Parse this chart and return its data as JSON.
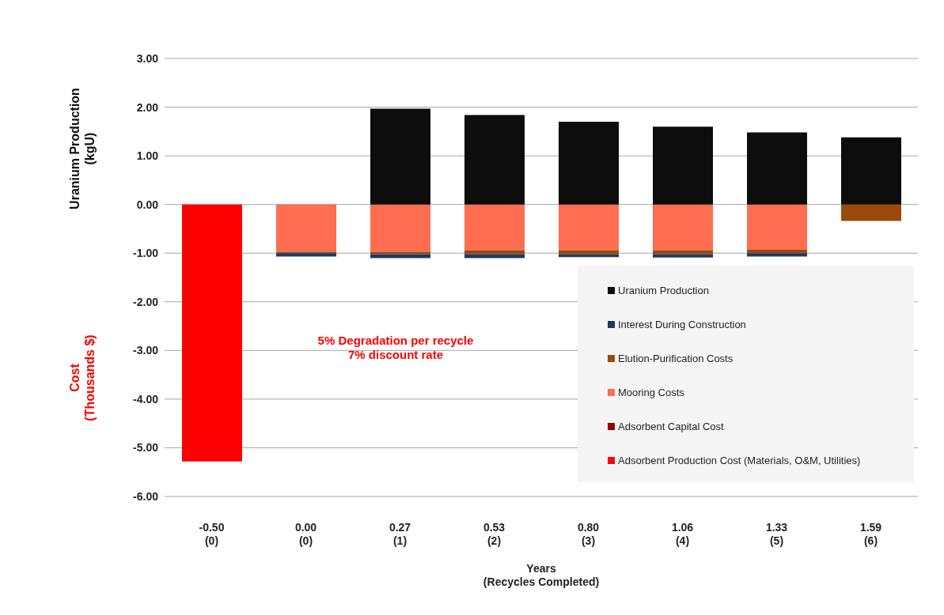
{
  "chart_data": {
    "type": "bar",
    "stacked": true,
    "categories": [
      "-0.50\n(0)",
      "0.00\n(0)",
      "0.27\n(1)",
      "0.53\n(2)",
      "0.80\n(3)",
      "1.06\n(4)",
      "1.33\n(5)",
      "1.59\n(6)"
    ],
    "xlabel": "Years\n(Recycles Completed)",
    "ylabel": "Uranium Production\n(kgU)",
    "series": [
      {
        "name": "Adsorbent Production Cost (Materials, O&M, Utilities)",
        "color": "#ff0000",
        "values": [
          -5.28,
          null,
          null,
          null,
          null,
          null,
          null,
          null
        ]
      },
      {
        "name": "Adsorbent Capital Cost",
        "color": "#990000",
        "values": [
          null,
          null,
          null,
          null,
          null,
          null,
          null,
          null
        ]
      },
      {
        "name": "Mooring Costs",
        "color": "#ff6e50",
        "values": [
          null,
          -0.97,
          -0.97,
          -0.94,
          -0.94,
          -0.94,
          -0.93,
          null
        ]
      },
      {
        "name": "Elution-Purification Costs",
        "color": "#9c4a0a",
        "values": [
          null,
          -0.03,
          -0.05,
          -0.08,
          -0.08,
          -0.08,
          -0.07,
          -0.34
        ]
      },
      {
        "name": "Interest During Construction",
        "color": "#1f3864",
        "values": [
          null,
          -0.07,
          -0.08,
          -0.08,
          -0.06,
          -0.07,
          -0.07,
          null
        ]
      },
      {
        "name": "Uranium Production",
        "color": "#0d0d0d",
        "values": [
          null,
          null,
          1.97,
          1.84,
          1.7,
          1.6,
          1.48,
          1.38
        ]
      }
    ],
    "ylim": [
      -6,
      3
    ],
    "yticks": [
      {
        "value": -6,
        "label": "-6.00"
      },
      {
        "value": -5,
        "label": "-5.00"
      },
      {
        "value": -4,
        "label": "-4.00"
      },
      {
        "value": -3,
        "label": "-3.00"
      },
      {
        "value": -2,
        "label": "-2.00"
      },
      {
        "value": -1,
        "label": "-1.00"
      },
      {
        "value": 0,
        "label": "0.00"
      },
      {
        "value": 1,
        "label": "1.00"
      },
      {
        "value": 2,
        "label": "2.00"
      },
      {
        "value": 3,
        "label": "3.00"
      }
    ],
    "grid": "y",
    "legend": "bottom right",
    "annotations": [
      "Cost\n(Thousands  $)",
      "5% Degradation per recycle\n7% discount rate"
    ]
  }
}
